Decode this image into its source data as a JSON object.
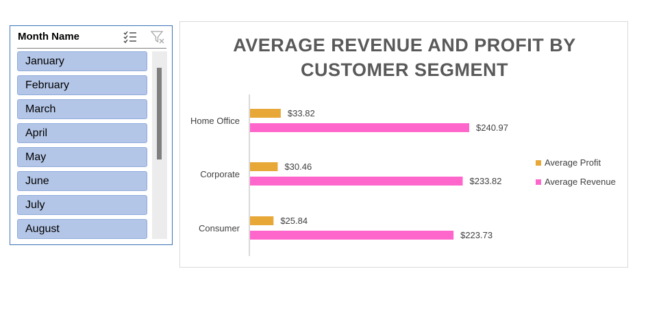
{
  "slicer": {
    "title": "Month Name",
    "items": [
      "January",
      "February",
      "March",
      "April",
      "May",
      "June",
      "July",
      "August"
    ],
    "icons": {
      "multi_select": "multi-select-icon",
      "clear_filter": "clear-filter-icon"
    }
  },
  "chart_data": {
    "type": "bar",
    "orientation": "horizontal",
    "title": "AVERAGE REVENUE AND PROFIT BY CUSTOMER SEGMENT",
    "categories": [
      "Home Office",
      "Corporate",
      "Consumer"
    ],
    "series": [
      {
        "name": "Average Profit",
        "color": "#e8a838",
        "values": [
          33.82,
          30.46,
          25.84
        ],
        "labels": [
          "$33.82",
          "$30.46",
          "$25.84"
        ]
      },
      {
        "name": "Average Revenue",
        "color": "#ff66cc",
        "values": [
          240.97,
          233.82,
          223.73
        ],
        "labels": [
          "$240.97",
          "$233.82",
          "$223.73"
        ]
      }
    ],
    "xlim": [
      0,
      300
    ],
    "grid": false,
    "legend_position": "right"
  }
}
